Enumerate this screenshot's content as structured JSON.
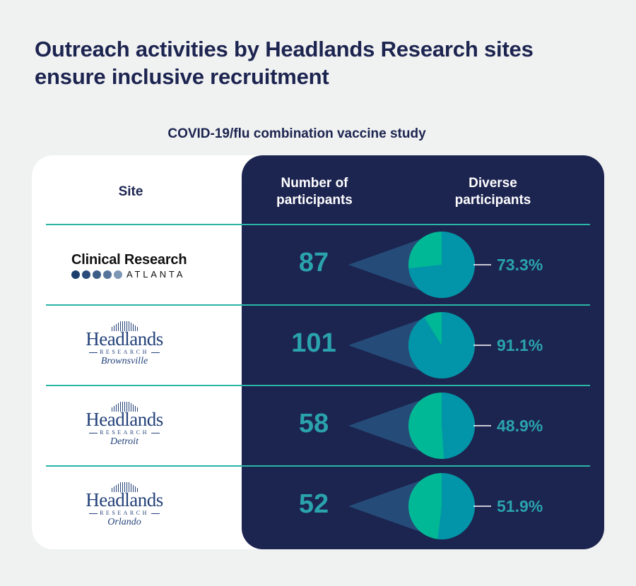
{
  "title": "Outreach activities by Headlands Research sites ensure inclusive recruitment",
  "subtitle": "COVID-19/flu combination vaccine study",
  "headers": {
    "site": "Site",
    "participants": "Number of participants",
    "diverse": "Diverse participants"
  },
  "colors": {
    "navy": "#1c2450",
    "teal_number": "#2aa3ad",
    "pie_diverse": "#0294a8",
    "pie_other": "#01b896",
    "divider": "#2bb5a5"
  },
  "logos": {
    "cra": {
      "name": "Clinical Research",
      "sub": "ATLANTA"
    },
    "headlands": {
      "name": "Headlands",
      "sub": "RESEARCH"
    }
  },
  "chart_data": {
    "type": "table",
    "title": "COVID-19/flu combination vaccine study",
    "columns": [
      "Site",
      "Number of participants",
      "Diverse participants"
    ],
    "rows": [
      {
        "site": "Clinical Research Atlanta",
        "city": "",
        "participants": 87,
        "diverse_pct": 73.3,
        "label": "87",
        "pct_label": "73.3%"
      },
      {
        "site": "Headlands Research",
        "city": "Brownsville",
        "participants": 101,
        "diverse_pct": 91.1,
        "label": "101",
        "pct_label": "91.1%"
      },
      {
        "site": "Headlands Research",
        "city": "Detroit",
        "participants": 58,
        "diverse_pct": 48.9,
        "label": "58",
        "pct_label": "48.9%"
      },
      {
        "site": "Headlands Research",
        "city": "Orlando",
        "participants": 52,
        "diverse_pct": 51.9,
        "label": "52",
        "pct_label": "51.9%"
      }
    ]
  }
}
